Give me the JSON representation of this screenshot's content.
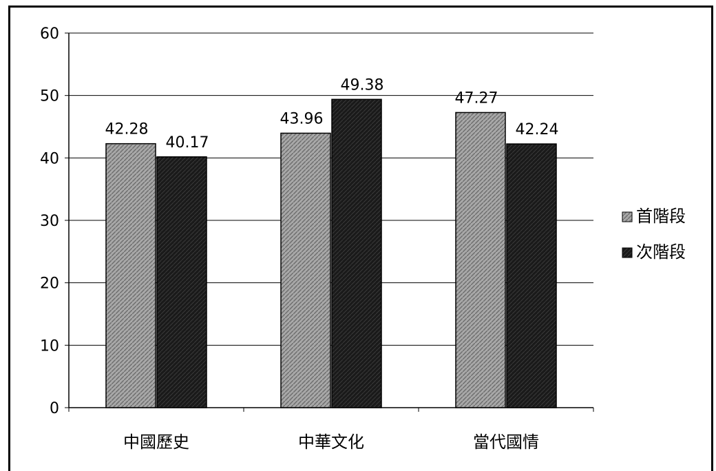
{
  "chart_data": {
    "type": "bar",
    "categories": [
      "中國歷史",
      "中華文化",
      "當代國情"
    ],
    "series": [
      {
        "name": "首階段",
        "values": [
          42.28,
          43.96,
          47.27
        ],
        "labels": [
          "42.28",
          "43.96",
          "47.27"
        ],
        "color": "#9a9a9a"
      },
      {
        "name": "次階段",
        "values": [
          40.17,
          49.38,
          42.24
        ],
        "labels": [
          "40.17",
          "49.38",
          "42.24"
        ],
        "color": "#1a1a1a"
      }
    ],
    "ylim": [
      0,
      60
    ],
    "yticks": [
      "0",
      "10",
      "20",
      "30",
      "40",
      "50",
      "60"
    ],
    "grid": true,
    "legend": "right"
  }
}
